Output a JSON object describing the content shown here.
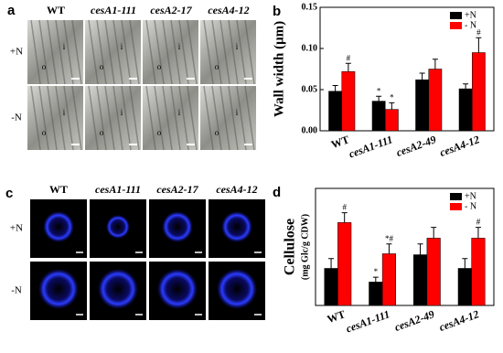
{
  "figure": {
    "a": {
      "label": "a",
      "columns": [
        "WT",
        "cesA1-111",
        "cesA2-17",
        "cesA4-12"
      ],
      "rows": [
        "+N",
        "-N"
      ],
      "markers": [
        "o",
        "i"
      ]
    },
    "c": {
      "label": "c",
      "columns": [
        "WT",
        "cesA1-111",
        "cesA2-17",
        "cesA4-12"
      ],
      "rows": [
        "+N",
        "-N"
      ]
    }
  },
  "chart_data": [
    {
      "type": "bar",
      "label": "b",
      "y_label": "Wall width (μm)",
      "categories": [
        "WT",
        "cesA1-111",
        "cesA2-49",
        "cesA4-12"
      ],
      "series": [
        {
          "name": "+N",
          "color": "#000000",
          "values": [
            0.048,
            0.036,
            0.062,
            0.051
          ],
          "errors": [
            0.007,
            0.006,
            0.008,
            0.006
          ],
          "annotations": [
            null,
            "*",
            null,
            null
          ]
        },
        {
          "name": "- N",
          "color": "#ff0000",
          "values": [
            0.072,
            0.026,
            0.075,
            0.095
          ],
          "errors": [
            0.01,
            0.008,
            0.012,
            0.018
          ],
          "annotations": [
            "#",
            "*",
            null,
            "#"
          ]
        }
      ],
      "ylim": [
        0,
        0.15
      ],
      "yticks": [
        {
          "value": 0,
          "label": "0.00"
        },
        {
          "value": 0.05,
          "label": "0.05"
        },
        {
          "value": 0.1,
          "label": "0.10"
        },
        {
          "value": 0.15,
          "label": "0.15"
        }
      ],
      "legend": "upper-right"
    },
    {
      "type": "bar",
      "label": "d",
      "y_label": "Cellulose",
      "y_sublabel": "(mg Glc/g CDW)",
      "categories": [
        "WT",
        "cesA1-111",
        "cesA2-49",
        "cesA4-12"
      ],
      "series": [
        {
          "name": "+N",
          "color": "#000000",
          "values": [
            3.8,
            2.4,
            5.2,
            3.8
          ],
          "errors": [
            1.0,
            0.5,
            1.1,
            1.0
          ],
          "annotations": [
            null,
            "*",
            null,
            null
          ]
        },
        {
          "name": "- N",
          "color": "#ff0000",
          "values": [
            8.5,
            5.3,
            6.9,
            6.9
          ],
          "errors": [
            1.0,
            1.0,
            1.1,
            1.1
          ],
          "annotations": [
            "#",
            "*#",
            null,
            "#"
          ]
        }
      ],
      "ylim": [
        0,
        12
      ],
      "legend": "upper-right"
    }
  ]
}
